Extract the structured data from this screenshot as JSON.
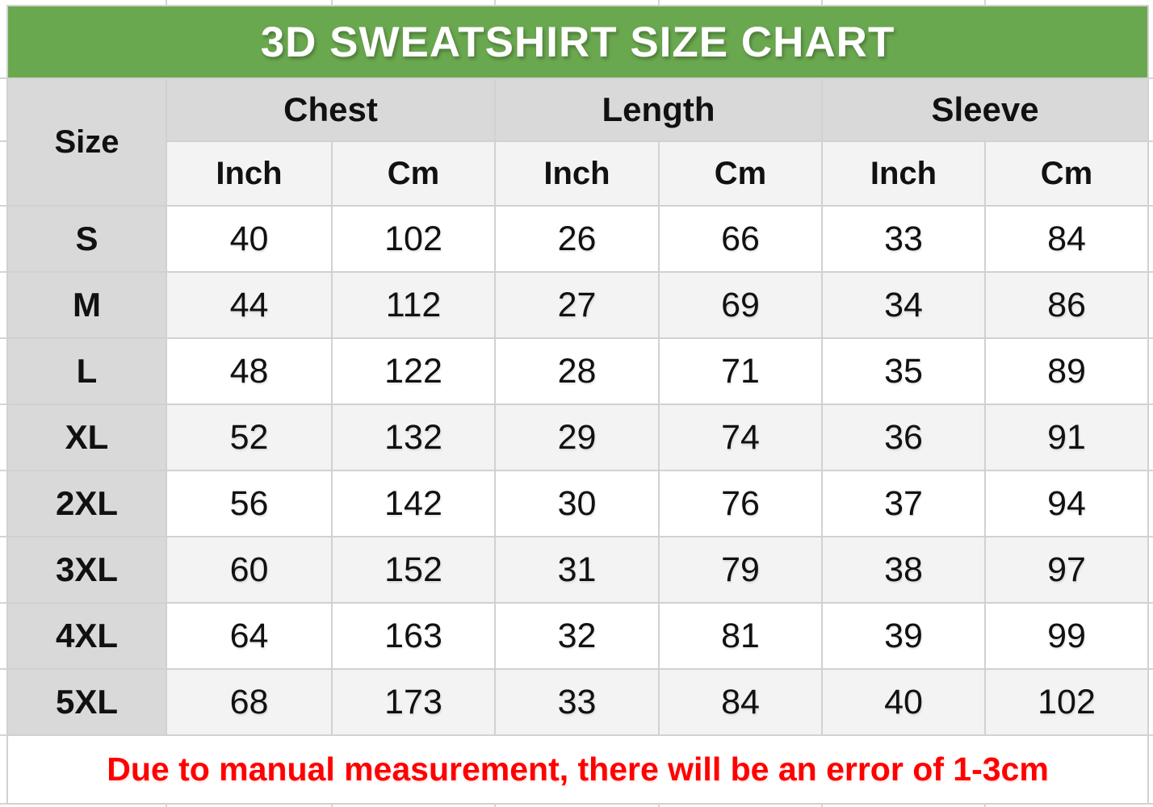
{
  "title": "3D SWEATSHIRT SIZE CHART",
  "note": "Due to manual measurement, there will be an error of 1-3cm",
  "headers": {
    "size": "Size",
    "chest": "Chest",
    "length": "Length",
    "sleeve": "Sleeve",
    "inch": "Inch",
    "cm": "Cm"
  },
  "rows": [
    {
      "size": "S",
      "chest_in": "40",
      "chest_cm": "102",
      "len_in": "26",
      "len_cm": "66",
      "slv_in": "33",
      "slv_cm": "84"
    },
    {
      "size": "M",
      "chest_in": "44",
      "chest_cm": "112",
      "len_in": "27",
      "len_cm": "69",
      "slv_in": "34",
      "slv_cm": "86"
    },
    {
      "size": "L",
      "chest_in": "48",
      "chest_cm": "122",
      "len_in": "28",
      "len_cm": "71",
      "slv_in": "35",
      "slv_cm": "89"
    },
    {
      "size": "XL",
      "chest_in": "52",
      "chest_cm": "132",
      "len_in": "29",
      "len_cm": "74",
      "slv_in": "36",
      "slv_cm": "91"
    },
    {
      "size": "2XL",
      "chest_in": "56",
      "chest_cm": "142",
      "len_in": "30",
      "len_cm": "76",
      "slv_in": "37",
      "slv_cm": "94"
    },
    {
      "size": "3XL",
      "chest_in": "60",
      "chest_cm": "152",
      "len_in": "31",
      "len_cm": "79",
      "slv_in": "38",
      "slv_cm": "97"
    },
    {
      "size": "4XL",
      "chest_in": "64",
      "chest_cm": "163",
      "len_in": "32",
      "len_cm": "81",
      "slv_in": "39",
      "slv_cm": "99"
    },
    {
      "size": "5XL",
      "chest_in": "68",
      "chest_cm": "173",
      "len_in": "33",
      "len_cm": "84",
      "slv_in": "40",
      "slv_cm": "102"
    }
  ],
  "colors": {
    "banner_green": "#6aa84f",
    "header_gray": "#d9d9d9",
    "alt_row_gray": "#f3f3f3",
    "note_red": "#ff0000",
    "grid_line": "#d1d1d1",
    "title_text": "#ffffff",
    "body_text": "#111111"
  },
  "chart_data": {
    "type": "table",
    "title": "3D SWEATSHIRT SIZE CHART",
    "column_groups": [
      "Chest",
      "Length",
      "Sleeve"
    ],
    "columns": [
      "Size",
      "Chest Inch",
      "Chest Cm",
      "Length Inch",
      "Length Cm",
      "Sleeve Inch",
      "Sleeve Cm"
    ],
    "rows": [
      [
        "S",
        40,
        102,
        26,
        66,
        33,
        84
      ],
      [
        "M",
        44,
        112,
        27,
        69,
        34,
        86
      ],
      [
        "L",
        48,
        122,
        28,
        71,
        35,
        89
      ],
      [
        "XL",
        52,
        132,
        29,
        74,
        36,
        91
      ],
      [
        "2XL",
        56,
        142,
        30,
        76,
        37,
        94
      ],
      [
        "3XL",
        60,
        152,
        31,
        79,
        38,
        97
      ],
      [
        "4XL",
        64,
        163,
        32,
        81,
        39,
        99
      ],
      [
        "5XL",
        68,
        173,
        33,
        84,
        40,
        102
      ]
    ],
    "note": "Due to manual measurement, there will be an error of 1-3cm",
    "layout_hints": {
      "grid": true,
      "banner_position": "top",
      "note_position": "bottom"
    }
  }
}
